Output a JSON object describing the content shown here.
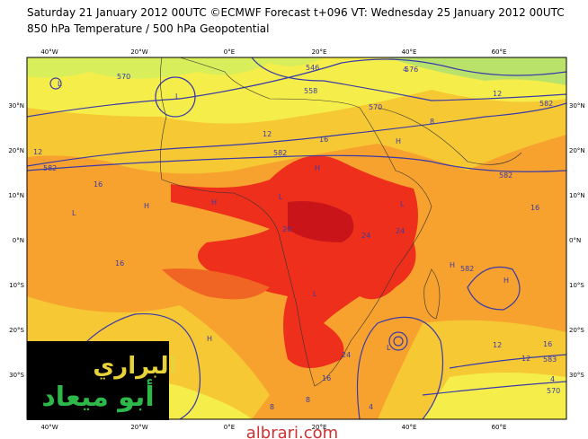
{
  "header": {
    "line1": "Saturday 21 January 2012 00UTC ©ECMWF Forecast t+096 VT: Wednesday 25 January 2012 00UTC",
    "line2": "850 hPa Temperature / 500 hPa Geopotential"
  },
  "longitudes": [
    "40°W",
    "20°W",
    "0°E",
    "20°E",
    "40°E",
    "60°E"
  ],
  "latitudes": [
    "30°N",
    "20°N",
    "10°N",
    "0°N",
    "10°S",
    "20°S",
    "30°S"
  ],
  "contour_labels": [
    "546",
    "558",
    "570",
    "570",
    "582",
    "582",
    "582",
    "582",
    "12",
    "12",
    "16",
    "16",
    "16",
    "12",
    "8",
    "4",
    "4",
    "16",
    "24",
    "24",
    "24",
    "20",
    "16",
    "8",
    "12",
    "12",
    "16",
    "583",
    "570",
    "4",
    "576",
    "582",
    "8"
  ],
  "pressure_marks": [
    "L",
    "L",
    "H",
    "H",
    "H",
    "L",
    "L",
    "H",
    "L",
    "H",
    "H",
    "L",
    "L",
    "H"
  ],
  "watermark": {
    "line1": "البراري",
    "line2": "أبو ميعاد",
    "site": "albrari.com"
  }
}
